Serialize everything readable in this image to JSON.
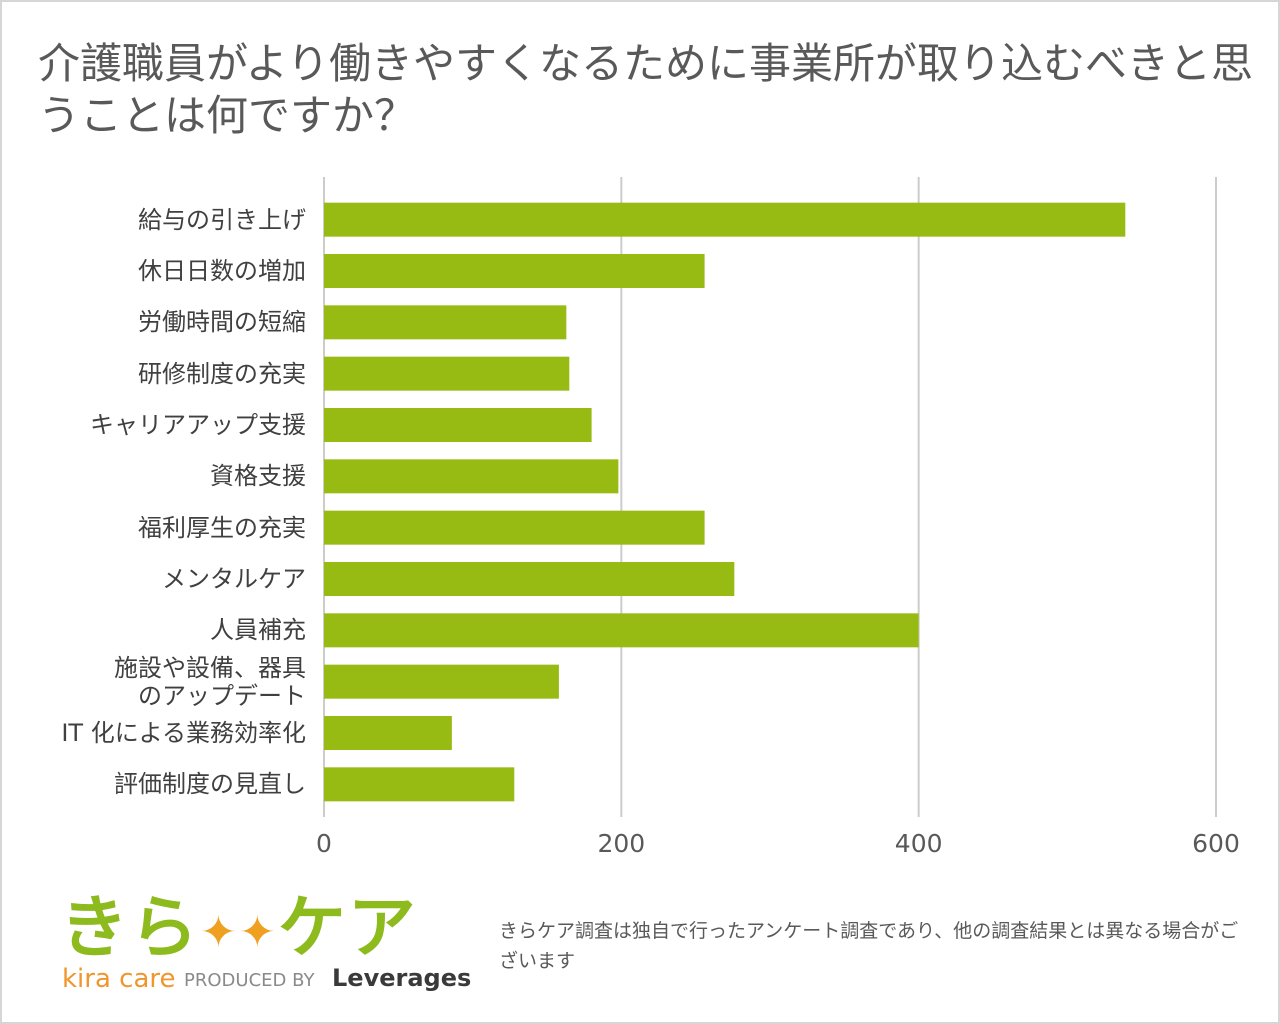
{
  "chart_data": {
    "type": "bar",
    "orientation": "horizontal",
    "title": "介護職員がより働きやすくなるために事業所が取り込むべきと思うことは何ですか？",
    "categories": [
      "給与の引き上げ",
      "休日日数の増加",
      "労働時間の短縮",
      "研修制度の充実",
      "キャリアアップ支援",
      "資格支援",
      "福利厚生の充実",
      "メンタルケア",
      "人員補充",
      "施設や設備、器具\nのアップデート",
      "IT 化による業務効率化",
      "評価制度の見直し"
    ],
    "values": [
      539,
      256,
      163,
      165,
      180,
      198,
      256,
      276,
      400,
      158,
      86,
      128
    ],
    "color": "#97bb12",
    "xlim": [
      0,
      600
    ],
    "xticks": [
      0,
      200,
      400,
      600
    ],
    "grid": true
  },
  "logo": {
    "main_left": "きら",
    "main_right": "ケア",
    "sub": "kira care",
    "produced_by": "PRODUCED BY",
    "company": "Leverages"
  },
  "note": "きらケア調査は独自で行ったアンケート調査であり、他の調査結果とは異なる場合がございます"
}
